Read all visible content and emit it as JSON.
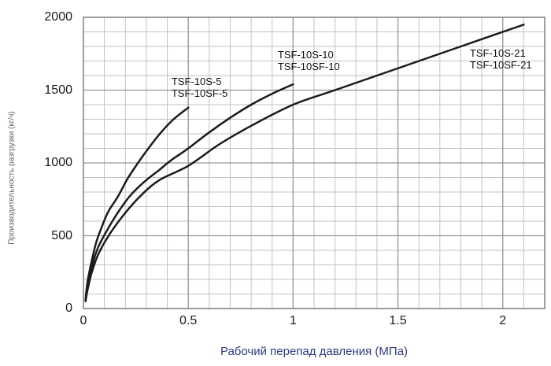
{
  "chart_data": {
    "type": "line",
    "title": "",
    "xlabel": "Рабочий перепад давления (МПа)",
    "ylabel": "Производительность разгрузки (кг/ч)",
    "xlim": [
      0,
      2.2
    ],
    "ylim": [
      0,
      2000
    ],
    "xticks": [
      0,
      0.5,
      1,
      1.5,
      2
    ],
    "xtick_labels": [
      "0",
      "0.5",
      "1",
      "1.5",
      "2"
    ],
    "yticks": [
      0,
      500,
      1000,
      1500,
      2000
    ],
    "ytick_labels": [
      "0",
      "500",
      "1000",
      "1500",
      "2000"
    ],
    "x_minor_step": 0.1,
    "y_minor_step": 100,
    "grid": true,
    "legend_position": "inline-curve-labels",
    "colors": {
      "curve": "#1b1b1b",
      "grid_minor": "#c2c2c2",
      "grid_major": "#969696",
      "border": "#7d7d7d",
      "tick_text": "#1a1a1a",
      "xlabel_text": "#2f3a85",
      "ylabel_text": "#636363"
    },
    "series": [
      {
        "name": "TSF-10S-5 / TSF-10SF-5",
        "label_lines": [
          "TSF-10S-5",
          "TSF-10SF-5"
        ],
        "label_pos": {
          "x": 0.42,
          "y": 1600
        },
        "x": [
          0.01,
          0.02,
          0.04,
          0.06,
          0.09,
          0.12,
          0.165,
          0.21,
          0.26,
          0.31,
          0.37,
          0.43,
          0.5
        ],
        "y": [
          60,
          190,
          330,
          450,
          570,
          670,
          770,
          890,
          1000,
          1100,
          1210,
          1300,
          1380
        ]
      },
      {
        "name": "TSF-10S-10 / TSF-10SF-10",
        "label_lines": [
          "TSF-10S-10",
          "TSF-10SF-10"
        ],
        "label_pos": {
          "x": 0.927,
          "y": 1784
        },
        "x": [
          0.01,
          0.02,
          0.04,
          0.07,
          0.11,
          0.16,
          0.22,
          0.29,
          0.36,
          0.42,
          0.5,
          0.6,
          0.7,
          0.8,
          0.9,
          1.0
        ],
        "y": [
          55,
          160,
          290,
          420,
          530,
          650,
          770,
          870,
          950,
          1020,
          1100,
          1210,
          1310,
          1400,
          1475,
          1540
        ]
      },
      {
        "name": "TSF-10S-21 / TSF-10SF-21",
        "label_lines": [
          "TSF-10S-21",
          "TSF-10SF-21"
        ],
        "label_pos": {
          "x": 1.843,
          "y": 1795
        },
        "x": [
          0.01,
          0.02,
          0.04,
          0.07,
          0.12,
          0.19,
          0.27,
          0.36,
          0.5,
          0.65,
          0.8,
          1.0,
          1.2,
          1.4,
          1.6,
          1.8,
          2.0,
          2.1
        ],
        "y": [
          50,
          130,
          250,
          370,
          500,
          640,
          770,
          880,
          980,
          1130,
          1255,
          1400,
          1500,
          1600,
          1700,
          1800,
          1900,
          1950
        ]
      }
    ]
  }
}
